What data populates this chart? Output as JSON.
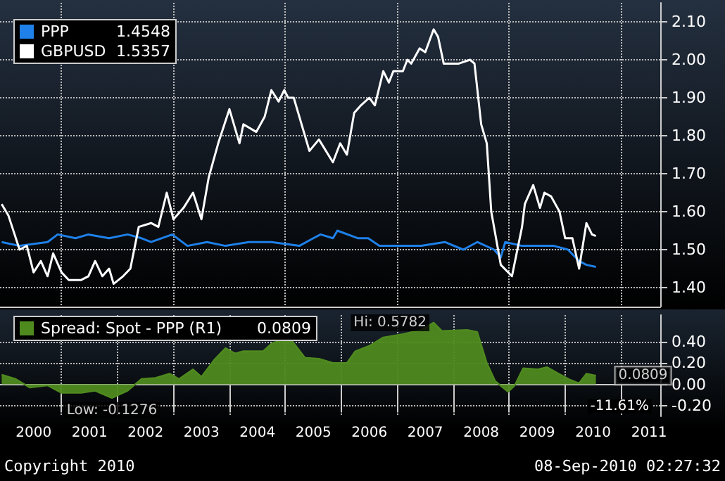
{
  "chart_data": [
    {
      "type": "line",
      "xlim": [
        1999.9,
        2011.7
      ],
      "xticks": [
        {
          "value": 2001,
          "label": null
        },
        {
          "value": 2003,
          "label": null
        },
        {
          "value": 2005,
          "label": null
        },
        {
          "value": 2007,
          "label": null
        },
        {
          "value": 2009,
          "label": null
        },
        {
          "value": 2011,
          "label": null
        }
      ],
      "ylim": [
        1.35,
        2.15
      ],
      "yticks": [
        {
          "value": 1.4,
          "label": "1.40"
        },
        {
          "value": 1.5,
          "label": "1.50"
        },
        {
          "value": 1.6,
          "label": "1.60"
        },
        {
          "value": 1.7,
          "label": "1.70"
        },
        {
          "value": 1.8,
          "label": "1.80"
        },
        {
          "value": 1.9,
          "label": "1.90"
        },
        {
          "value": 2.0,
          "label": "2.00"
        },
        {
          "value": 2.1,
          "label": "2.10"
        }
      ],
      "grid": true,
      "legend": "top left",
      "tick_labels": "y",
      "annotations": [
        "1.4548",
        "1.5357"
      ],
      "series": [
        {
          "name": "PPP",
          "color": "#1e80e8",
          "x": [
            1999.93,
            2000.25,
            2000.75,
            2000.93,
            2001.25,
            2001.48,
            2001.85,
            2002.18,
            2002.43,
            2002.6,
            2002.98,
            2003.25,
            2003.6,
            2003.93,
            2004.35,
            2004.75,
            2005.25,
            2005.5,
            2005.63,
            2005.85,
            2005.93,
            2006.3,
            2006.48,
            2006.68,
            2006.93,
            2007.43,
            2007.85,
            2008.18,
            2008.43,
            2008.73,
            2008.85,
            2008.93,
            2009.23,
            2009.43,
            2009.8,
            2010.05,
            2010.25,
            2010.38,
            2010.55
          ],
          "values": [
            1.52,
            1.51,
            1.52,
            1.54,
            1.53,
            1.54,
            1.53,
            1.54,
            1.53,
            1.52,
            1.54,
            1.51,
            1.52,
            1.51,
            1.52,
            1.52,
            1.51,
            1.53,
            1.54,
            1.53,
            1.55,
            1.53,
            1.53,
            1.51,
            1.51,
            1.51,
            1.52,
            1.5,
            1.52,
            1.5,
            1.48,
            1.52,
            1.51,
            1.51,
            1.51,
            1.5,
            1.47,
            1.46,
            1.4548
          ]
        },
        {
          "name": "GBPUSD",
          "color": "#ffffff",
          "x": [
            1999.93,
            2000.05,
            2000.25,
            2000.38,
            2000.5,
            2000.63,
            2000.75,
            2000.85,
            2001.0,
            2001.13,
            2001.35,
            2001.48,
            2001.6,
            2001.73,
            2001.85,
            2001.93,
            2002.1,
            2002.23,
            2002.38,
            2002.6,
            2002.73,
            2002.88,
            2003.0,
            2003.18,
            2003.35,
            2003.5,
            2003.63,
            2003.8,
            2004.0,
            2004.18,
            2004.25,
            2004.48,
            2004.63,
            2004.75,
            2004.88,
            2004.98,
            2005.05,
            2005.15,
            2005.43,
            2005.6,
            2005.85,
            2005.98,
            2006.1,
            2006.23,
            2006.35,
            2006.5,
            2006.6,
            2006.75,
            2006.85,
            2006.93,
            2007.1,
            2007.18,
            2007.25,
            2007.4,
            2007.5,
            2007.65,
            2007.73,
            2007.83,
            2008.0,
            2008.1,
            2008.3,
            2008.38,
            2008.5,
            2008.6,
            2008.68,
            2008.85,
            2009.05,
            2009.23,
            2009.28,
            2009.43,
            2009.55,
            2009.63,
            2009.75,
            2009.9,
            2010.0,
            2010.13,
            2010.25,
            2010.38,
            2010.48,
            2010.55
          ],
          "values": [
            1.62,
            1.59,
            1.5,
            1.51,
            1.44,
            1.47,
            1.43,
            1.49,
            1.44,
            1.42,
            1.42,
            1.43,
            1.47,
            1.43,
            1.45,
            1.41,
            1.43,
            1.45,
            1.56,
            1.57,
            1.56,
            1.65,
            1.58,
            1.61,
            1.65,
            1.58,
            1.69,
            1.78,
            1.87,
            1.78,
            1.83,
            1.81,
            1.85,
            1.92,
            1.89,
            1.92,
            1.9,
            1.9,
            1.76,
            1.79,
            1.73,
            1.78,
            1.75,
            1.86,
            1.88,
            1.9,
            1.88,
            1.97,
            1.94,
            1.97,
            1.97,
            2.0,
            1.99,
            2.03,
            2.02,
            2.08,
            2.06,
            1.99,
            1.99,
            1.99,
            2.0,
            1.99,
            1.83,
            1.78,
            1.6,
            1.46,
            1.43,
            1.56,
            1.62,
            1.67,
            1.61,
            1.65,
            1.64,
            1.6,
            1.53,
            1.53,
            1.45,
            1.57,
            1.54,
            1.5357
          ]
        }
      ]
    },
    {
      "type": "area",
      "xlim": [
        1999.9,
        2011.7
      ],
      "xticks": [
        {
          "value": 2000.5,
          "label": "2000"
        },
        {
          "value": 2001,
          "label": null
        },
        {
          "value": 2001.5,
          "label": "2001"
        },
        {
          "value": 2002,
          "label": null
        },
        {
          "value": 2002.5,
          "label": "2002"
        },
        {
          "value": 2003,
          "label": null
        },
        {
          "value": 2003.5,
          "label": "2003"
        },
        {
          "value": 2004,
          "label": null
        },
        {
          "value": 2004.5,
          "label": "2004"
        },
        {
          "value": 2005,
          "label": null
        },
        {
          "value": 2005.5,
          "label": "2005"
        },
        {
          "value": 2006,
          "label": null
        },
        {
          "value": 2006.5,
          "label": "2006"
        },
        {
          "value": 2007,
          "label": null
        },
        {
          "value": 2007.5,
          "label": "2007"
        },
        {
          "value": 2008,
          "label": null
        },
        {
          "value": 2008.5,
          "label": "2008"
        },
        {
          "value": 2009,
          "label": null
        },
        {
          "value": 2009.5,
          "label": "2009"
        },
        {
          "value": 2010,
          "label": null
        },
        {
          "value": 2010.5,
          "label": "2010"
        },
        {
          "value": 2011,
          "label": null
        },
        {
          "value": 2011.5,
          "label": "2011"
        }
      ],
      "ylim": [
        -0.3,
        0.65
      ],
      "yticks": [
        {
          "value": -0.2,
          "label": "-0.20"
        },
        {
          "value": 0,
          "label": "0.00"
        },
        {
          "value": 0.2,
          "label": "0.20"
        },
        {
          "value": 0.4,
          "label": "0.40"
        }
      ],
      "grid": true,
      "legend": "top left",
      "annotations": [
        "0.0809",
        {
          "text": "Hi: 0.5782",
          "x": 2007.65,
          "y": 0.5782
        },
        {
          "text": "Low: -0.1276",
          "x": 2001.9,
          "y": -0.1276
        },
        {
          "text": "0.0809",
          "x": 2010.55,
          "y": 0.0809
        },
        "-11.61%",
        "Copyright 2010",
        "08-Sep-2010 02:27:32"
      ],
      "series": [
        {
          "name": "Spread: Spot - PPP (R1)",
          "color": "#4f8a1f",
          "x": [
            1999.93,
            2000.18,
            2000.43,
            2000.75,
            2001.0,
            2001.35,
            2001.6,
            2001.9,
            2002.18,
            2002.43,
            2002.68,
            2002.93,
            2003.1,
            2003.35,
            2003.5,
            2003.73,
            2003.93,
            2004.1,
            2004.25,
            2004.6,
            2004.75,
            2004.93,
            2005.13,
            2005.35,
            2005.6,
            2005.85,
            2006.1,
            2006.25,
            2006.5,
            2006.75,
            2007.1,
            2007.43,
            2007.65,
            2007.8,
            2008.25,
            2008.43,
            2008.6,
            2008.75,
            2008.98,
            2009.1,
            2009.25,
            2009.5,
            2009.68,
            2009.88,
            2010.1,
            2010.25,
            2010.38,
            2010.55
          ],
          "values": [
            0.09,
            0.05,
            -0.03,
            -0.01,
            -0.08,
            -0.08,
            -0.06,
            -0.1276,
            -0.06,
            0.05,
            0.06,
            0.1,
            0.05,
            0.14,
            0.07,
            0.23,
            0.34,
            0.29,
            0.31,
            0.31,
            0.38,
            0.42,
            0.4,
            0.25,
            0.24,
            0.2,
            0.2,
            0.31,
            0.36,
            0.44,
            0.47,
            0.51,
            0.5782,
            0.5,
            0.51,
            0.49,
            0.2,
            0.03,
            -0.07,
            -0.01,
            0.15,
            0.14,
            0.16,
            0.1,
            0.04,
            0.01,
            0.1,
            0.0809
          ]
        }
      ]
    }
  ]
}
